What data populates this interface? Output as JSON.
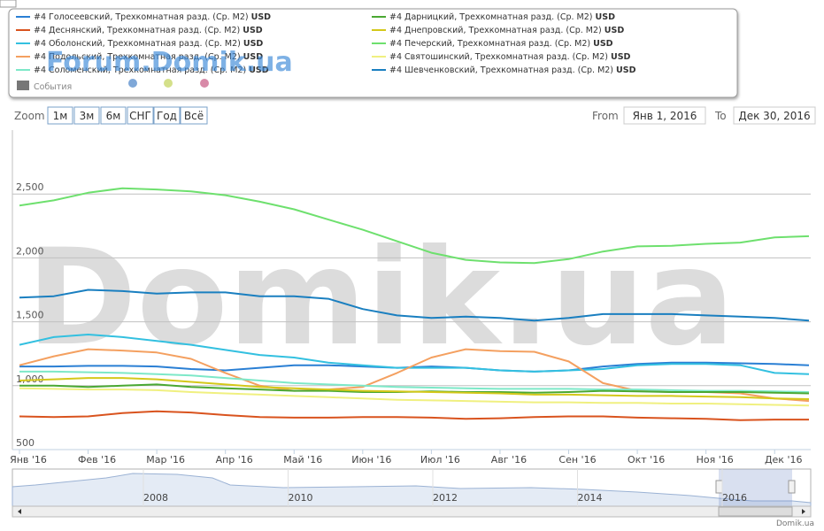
{
  "chart_data": {
    "type": "line",
    "categories": [
      "Янв '16",
      null,
      "Фев '16",
      null,
      "Мар '16",
      null,
      "Апр '16",
      null,
      "Май '16",
      null,
      "Июн '16",
      null,
      "Июл '16",
      null,
      "Авг '16",
      null,
      "Сен '16",
      null,
      "Окт '16",
      null,
      "Ноя '16",
      null,
      "Дек '16",
      null
    ],
    "unit": "USD",
    "series": [
      {
        "name": "#4 Голосеевский, Трехкомнатная разд. (Ср. М2)",
        "color": "#2a7fd4",
        "values": [
          1150,
          1150,
          1155,
          1155,
          1150,
          1130,
          1120,
          1140,
          1160,
          1160,
          1150,
          1140,
          1150,
          1140,
          1120,
          1110,
          1120,
          1150,
          1170,
          1180,
          1180,
          1175,
          1170,
          1160
        ]
      },
      {
        "name": "#4 Деснянский, Трехкомнатная разд. (Ср. М2)",
        "color": "#d9531e",
        "values": [
          760,
          755,
          760,
          785,
          800,
          790,
          770,
          755,
          750,
          750,
          755,
          755,
          750,
          740,
          745,
          755,
          760,
          760,
          750,
          745,
          740,
          730,
          735,
          735
        ]
      },
      {
        "name": "#4 Оболонский, Трехкомнатная разд. (Ср. М2)",
        "color": "#33c0e0",
        "values": [
          1320,
          1380,
          1400,
          1380,
          1350,
          1320,
          1280,
          1240,
          1220,
          1180,
          1160,
          1140,
          1140,
          1140,
          1120,
          1110,
          1120,
          1130,
          1160,
          1170,
          1170,
          1160,
          1100,
          1090
        ]
      },
      {
        "name": "#4 Подольский, Трехкомнатная разд. (Ср. М2)",
        "color": "#f4a060",
        "values": [
          1160,
          1230,
          1285,
          1275,
          1260,
          1210,
          1100,
          1000,
          960,
          970,
          990,
          1100,
          1220,
          1285,
          1270,
          1265,
          1190,
          1020,
          960,
          950,
          950,
          940,
          900,
          880
        ]
      },
      {
        "name": "#4 Соломенский, Трехкомнатная разд. (Ср. М2)",
        "color": "#7de8c8",
        "values": [
          1110,
          1110,
          1105,
          1100,
          1090,
          1080,
          1060,
          1040,
          1020,
          1010,
          1000,
          990,
          985,
          980,
          975,
          975,
          975,
          970,
          970,
          965,
          960,
          960,
          955,
          950
        ]
      },
      {
        "name": "#4 Дарницкий, Трехкомнатная разд. (Ср. М2)",
        "color": "#4aa832",
        "values": [
          1000,
          1000,
          990,
          1000,
          1010,
          990,
          980,
          970,
          960,
          960,
          950,
          950,
          955,
          950,
          950,
          945,
          950,
          960,
          955,
          950,
          950,
          950,
          945,
          940
        ]
      },
      {
        "name": "#4 Днепровский, Трехкомнатная разд. (Ср. М2)",
        "color": "#d4c81a",
        "values": [
          1040,
          1050,
          1060,
          1060,
          1050,
          1030,
          1010,
          990,
          980,
          970,
          960,
          955,
          950,
          945,
          940,
          930,
          930,
          925,
          920,
          920,
          915,
          910,
          900,
          895
        ]
      },
      {
        "name": "#4 Печерский, Трехкомнатная разд. (Ср. М2)",
        "color": "#6ee06e",
        "values": [
          2410,
          2450,
          2510,
          2545,
          2535,
          2520,
          2490,
          2440,
          2380,
          2300,
          2220,
          2130,
          2040,
          1985,
          1965,
          1960,
          1990,
          2050,
          2090,
          2095,
          2110,
          2120,
          2160,
          2170
        ]
      },
      {
        "name": "#4 Святошинский, Трехкомнатная разд. (Ср. М2)",
        "color": "#f0f080",
        "values": [
          980,
          975,
          970,
          970,
          965,
          950,
          940,
          930,
          920,
          910,
          900,
          890,
          885,
          880,
          875,
          870,
          870,
          865,
          865,
          860,
          860,
          855,
          850,
          845
        ]
      },
      {
        "name": "#4 Шевченковский, Трехкомнатная разд. (Ср. М2)",
        "color": "#1a7fc0",
        "values": [
          1690,
          1700,
          1750,
          1740,
          1720,
          1730,
          1730,
          1700,
          1700,
          1680,
          1600,
          1550,
          1530,
          1540,
          1530,
          1510,
          1530,
          1560,
          1560,
          1560,
          1550,
          1540,
          1530,
          1510
        ]
      }
    ],
    "events_label": "События",
    "ylim": [
      500,
      3000
    ],
    "yticks": [
      500,
      {
        "value": 1000,
        "label": "1,000"
      },
      {
        "value": 1500,
        "label": "1,500"
      },
      {
        "value": 2000,
        "label": "2,000"
      },
      {
        "value": 2500,
        "label": "2,500"
      }
    ],
    "grid": true,
    "zoom_label": "Zoom",
    "zoom_buttons": [
      "1м",
      "3м",
      "6м",
      "СНГ",
      "Год",
      "Всё"
    ],
    "from_label": "From",
    "from_date": "Янв 1, 2016",
    "to_label": "To",
    "to_date": "Дек 30, 2016",
    "navigator_labels": [
      "2008",
      "2010",
      "2012",
      "2014",
      "2016"
    ],
    "watermark": "Domik.ua",
    "forum_watermark": "Forum.Domik.ua",
    "credit": "Domik.ua"
  }
}
